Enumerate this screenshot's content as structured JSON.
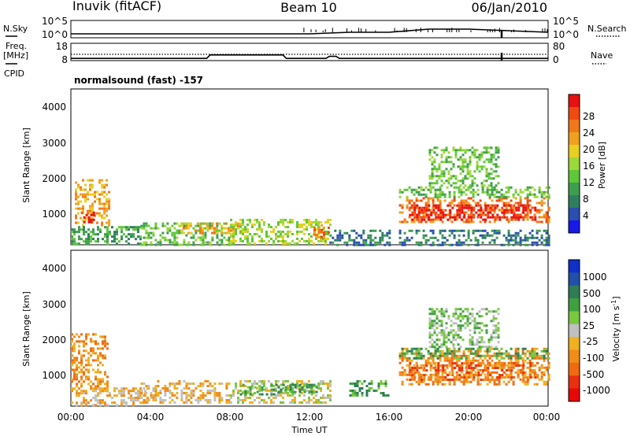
{
  "header": {
    "station": "Inuvik (fitACF)",
    "beam": "Beam 10",
    "date": "06/Jan/2010"
  },
  "side_labels": {
    "nsky": "N.Sky",
    "freq": "Freq.",
    "freq_unit": "[MHz]",
    "cpid": "CPID",
    "nsearch": "N.Search",
    "nave": "Nave"
  },
  "mode_label": "normalsound (fast) -157",
  "colors": {
    "power": [
      "#1818e8",
      "#2b4fb0",
      "#2f7f5f",
      "#3e9e4e",
      "#5fc83a",
      "#9dd83a",
      "#e8d020",
      "#f0a020",
      "#f07818",
      "#f04a10",
      "#e81010"
    ],
    "velocity": [
      "#1030c8",
      "#2050a8",
      "#2e7d55",
      "#3fa040",
      "#78c840",
      "#c0c0c0",
      "#f0b020",
      "#f08c18",
      "#f06a10",
      "#e83010",
      "#e80808"
    ]
  },
  "chart_data": [
    {
      "type": "line",
      "title": "",
      "series": [
        {
          "name": "N.Sky",
          "x": [
            "00:00",
            "04:00",
            "08:00",
            "12:00",
            "14:00",
            "16:00",
            "18:00",
            "20:00",
            "22:00",
            "24:00"
          ],
          "values": [
            2,
            2,
            2,
            2,
            3,
            3,
            5,
            5,
            4,
            3
          ]
        },
        {
          "name": "N.Search",
          "x": [
            "00:00",
            "24:00"
          ],
          "values": [
            8,
            8
          ]
        }
      ],
      "left_ticks": [
        "10^5",
        "10^0"
      ],
      "right_ticks": [
        "10^5",
        "10^0"
      ]
    },
    {
      "type": "line",
      "series": [
        {
          "name": "Freq.",
          "x": [
            "00:00",
            "06:50",
            "07:00",
            "10:40",
            "10:50",
            "12:50",
            "13:00",
            "13:20",
            "13:30",
            "24:00"
          ],
          "values": [
            8.9,
            8.9,
            11.1,
            11.1,
            8.9,
            8.9,
            10.2,
            10.2,
            8.9,
            8.9
          ]
        },
        {
          "name": "Nave",
          "x": [
            "00:00",
            "24:00"
          ],
          "values": [
            28,
            28
          ]
        }
      ],
      "left_ticks": [
        "18",
        "8"
      ],
      "right_ticks": [
        "80",
        "0"
      ]
    },
    {
      "type": "heatmap",
      "quantity": "Power",
      "xlabel": "",
      "ylabel": "Slant Range [km]",
      "xlim": [
        "00:00",
        "24:00"
      ],
      "ylim": [
        180,
        4500
      ],
      "y_ticks": [
        1000,
        2000,
        3000,
        4000
      ],
      "colorbar_label": "Power [dB]",
      "colorbar_ticks": [
        "4",
        "8",
        "12",
        "16",
        "20",
        "24",
        "28"
      ],
      "regions": [
        {
          "t0": 0.2,
          "t1": 1.9,
          "r0": 700,
          "r1": 2000,
          "level": 7
        },
        {
          "t0": 0.5,
          "t1": 1.1,
          "r0": 800,
          "r1": 1100,
          "level": 10
        },
        {
          "t0": 0.0,
          "t1": 3.5,
          "r0": 200,
          "r1": 700,
          "level": 3
        },
        {
          "t0": 3.5,
          "t1": 8.0,
          "r0": 200,
          "r1": 800,
          "level": 4
        },
        {
          "t0": 5.5,
          "t1": 8.5,
          "r0": 500,
          "r1": 800,
          "level": 7
        },
        {
          "t0": 8.0,
          "t1": 13.0,
          "r0": 200,
          "r1": 900,
          "level": 5
        },
        {
          "t0": 12.2,
          "t1": 13.0,
          "r0": 400,
          "r1": 750,
          "level": 8
        },
        {
          "t0": 13.0,
          "t1": 16.0,
          "r0": 200,
          "r1": 600,
          "level": 2
        },
        {
          "t0": 16.5,
          "t1": 24.0,
          "r0": 800,
          "r1": 1500,
          "level": 8
        },
        {
          "t0": 17.0,
          "t1": 23.5,
          "r0": 900,
          "r1": 1300,
          "level": 10
        },
        {
          "t0": 16.5,
          "t1": 24.0,
          "r0": 1500,
          "r1": 1800,
          "level": 4
        },
        {
          "t0": 16.5,
          "t1": 24.0,
          "r0": 200,
          "r1": 600,
          "level": 2
        },
        {
          "t0": 18.0,
          "t1": 21.5,
          "r0": 1800,
          "r1": 2900,
          "level": 4
        }
      ]
    },
    {
      "type": "heatmap",
      "quantity": "Velocity",
      "xlabel": "Time UT",
      "ylabel": "Slant Range [km]",
      "xlim": [
        "00:00",
        "24:00"
      ],
      "ylim": [
        180,
        4500
      ],
      "x_ticks": [
        "00:00",
        "04:00",
        "08:00",
        "12:00",
        "16:00",
        "20:00",
        "00:00"
      ],
      "y_ticks": [
        1000,
        2000,
        3000,
        4000
      ],
      "colorbar_label": "Velocity [m s^-1]",
      "colorbar_ticks": [
        "1000",
        "500",
        "100",
        "25",
        "-25",
        "-100",
        "-500",
        "-1000"
      ],
      "regions": [
        {
          "t0": 0.0,
          "t1": 1.9,
          "r0": 600,
          "r1": 2200,
          "level": 7
        },
        {
          "t0": 0.0,
          "t1": 4.0,
          "r0": 200,
          "r1": 700,
          "level": 6
        },
        {
          "t0": 3.5,
          "t1": 8.0,
          "r0": 300,
          "r1": 900,
          "level": 6
        },
        {
          "t0": 8.0,
          "t1": 13.0,
          "r0": 300,
          "r1": 900,
          "level": 5
        },
        {
          "t0": 8.5,
          "t1": 12.5,
          "r0": 500,
          "r1": 800,
          "level": 3
        },
        {
          "t0": 14.0,
          "t1": 16.0,
          "r0": 500,
          "r1": 900,
          "level": 3
        },
        {
          "t0": 16.5,
          "t1": 24.0,
          "r0": 800,
          "r1": 1800,
          "level": 7
        },
        {
          "t0": 17.0,
          "t1": 23.5,
          "r0": 900,
          "r1": 1400,
          "level": 8
        },
        {
          "t0": 16.5,
          "t1": 24.0,
          "r0": 1500,
          "r1": 1800,
          "level": 3
        },
        {
          "t0": 18.0,
          "t1": 21.5,
          "r0": 1800,
          "r1": 2900,
          "level": 4
        }
      ]
    }
  ],
  "axes": {
    "ylabel": "Slant Range [km]",
    "xlabel": "Time UT",
    "y_ticks": [
      "1000",
      "2000",
      "3000",
      "4000"
    ],
    "x_ticks": [
      "00:00",
      "04:00",
      "08:00",
      "12:00",
      "16:00",
      "20:00",
      "00:00"
    ]
  }
}
